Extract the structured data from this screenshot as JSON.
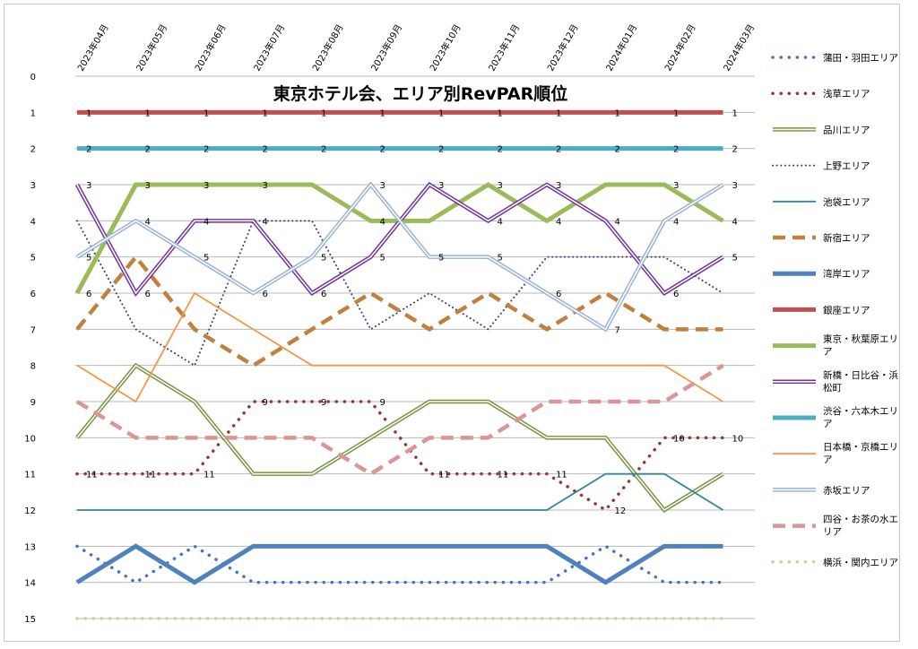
{
  "chart_data": {
    "type": "line",
    "title": "東京ホテル会、エリア別RevPAR順位",
    "categories": [
      "2023年04月",
      "2023年05月",
      "2023年06月",
      "2023年07月",
      "2023年08月",
      "2023年09月",
      "2023年10月",
      "2023年11月",
      "2023年12月",
      "2024年01月",
      "2024年02月",
      "2024年03月"
    ],
    "y_ticks": [
      "0",
      "1",
      "2",
      "3",
      "4",
      "5",
      "6",
      "7",
      "8",
      "9",
      "10",
      "11",
      "12",
      "13",
      "14",
      "15"
    ],
    "ylim": [
      0,
      15
    ],
    "y_inverted": true,
    "grid": true,
    "legend_position": "right",
    "series": [
      {
        "name": "蒲田・羽田エリア",
        "color": "#4472c4",
        "style": "dotted",
        "values": [
          13,
          14,
          13,
          14,
          14,
          14,
          14,
          14,
          14,
          13,
          14,
          14
        ]
      },
      {
        "name": "浅草エリア",
        "color": "#943634",
        "style": "dotted",
        "values": [
          11,
          11,
          11,
          9,
          9,
          9,
          11,
          11,
          11,
          12,
          10,
          10
        ]
      },
      {
        "name": "品川エリア",
        "color": "#77933c",
        "style": "double",
        "values": [
          10,
          8,
          9,
          11,
          11,
          10,
          9,
          9,
          10,
          10,
          12,
          11
        ]
      },
      {
        "name": "上野エリア",
        "color": "#403980",
        "style": "dotted-thin",
        "values": [
          4,
          7,
          8,
          4,
          4,
          7,
          6,
          7,
          5,
          5,
          5,
          6
        ]
      },
      {
        "name": "池袋エリア",
        "color": "#31859c",
        "style": "thin",
        "values": [
          12,
          12,
          12,
          12,
          12,
          12,
          12,
          12,
          12,
          11,
          11,
          12
        ]
      },
      {
        "name": "新宿エリア",
        "color": "#c0813f",
        "style": "dashed",
        "values": [
          7,
          5,
          7,
          8,
          7,
          6,
          7,
          6,
          7,
          6,
          7,
          7
        ]
      },
      {
        "name": "湾岸エリア",
        "color": "#4f81bd",
        "style": "thick",
        "values": [
          14,
          13,
          14,
          13,
          13,
          13,
          13,
          13,
          13,
          14,
          13,
          13
        ]
      },
      {
        "name": "銀座エリア",
        "color": "#c0504d",
        "style": "thick",
        "values": [
          1,
          1,
          1,
          1,
          1,
          1,
          1,
          1,
          1,
          1,
          1,
          1
        ]
      },
      {
        "name": "東京・秋葉原エリア",
        "color": "#9bbb59",
        "style": "thick",
        "values": [
          6,
          3,
          3,
          3,
          3,
          4,
          4,
          3,
          4,
          3,
          3,
          4
        ]
      },
      {
        "name": "新橋・日比谷・浜松町",
        "color": "#7030a0",
        "style": "double",
        "values": [
          3,
          6,
          4,
          4,
          6,
          5,
          3,
          4,
          3,
          4,
          6,
          5
        ]
      },
      {
        "name": "渋谷・六本木エリア",
        "color": "#4bacc6",
        "style": "thick",
        "values": [
          2,
          2,
          2,
          2,
          2,
          2,
          2,
          2,
          2,
          2,
          2,
          2
        ]
      },
      {
        "name": "日本橋・京橋エリア",
        "color": "#f79646",
        "style": "thin",
        "values": [
          8,
          9,
          6,
          7,
          8,
          8,
          8,
          8,
          8,
          8,
          8,
          9
        ]
      },
      {
        "name": "赤坂エリア",
        "color": "#95b3d7",
        "style": "double",
        "values": [
          5,
          4,
          5,
          6,
          5,
          3,
          5,
          5,
          6,
          7,
          4,
          3
        ]
      },
      {
        "name": "四谷・お茶の水エリア",
        "color": "#d99694",
        "style": "dashed",
        "values": [
          9,
          10,
          10,
          10,
          10,
          11,
          10,
          10,
          9,
          9,
          9,
          8
        ]
      },
      {
        "name": "横浜・関内エリア",
        "color": "#c3d69b",
        "style": "dotted",
        "values": [
          15,
          15,
          15,
          15,
          15,
          15,
          15,
          15,
          15,
          15,
          15,
          15
        ]
      }
    ],
    "data_labels": [
      {
        "series": "銀座エリア",
        "points": [
          "1",
          "1",
          "1",
          "1",
          "1",
          "1",
          "1",
          "1",
          "1",
          "1",
          "1",
          "1"
        ]
      },
      {
        "series": "渋谷・六本木エリア",
        "points": [
          "2",
          "2",
          "2",
          "2",
          "2",
          "2",
          "2",
          "2",
          "2",
          "2",
          "2",
          "2"
        ]
      },
      {
        "series": "新橋・日比谷・浜松町",
        "points": [
          "3",
          "6",
          "4",
          "4",
          "6",
          "5",
          "3",
          "4",
          "3",
          "4",
          "6",
          "5"
        ]
      },
      {
        "series": "赤坂エリア",
        "points": [
          "5",
          "4",
          "5",
          "6",
          "5",
          "3",
          "5",
          "5",
          "6",
          "7",
          "4",
          "3"
        ]
      },
      {
        "series": "東京・秋葉原エリア",
        "points": [
          "6",
          "3",
          "3",
          "3",
          "",
          "4",
          "",
          "3",
          "4",
          "",
          "3",
          "4"
        ]
      },
      {
        "series": "浅草エリア",
        "points": [
          "11",
          "11",
          "11",
          "9",
          "9",
          "9",
          "11",
          "11",
          "11",
          "12",
          "10",
          "10"
        ]
      }
    ]
  }
}
